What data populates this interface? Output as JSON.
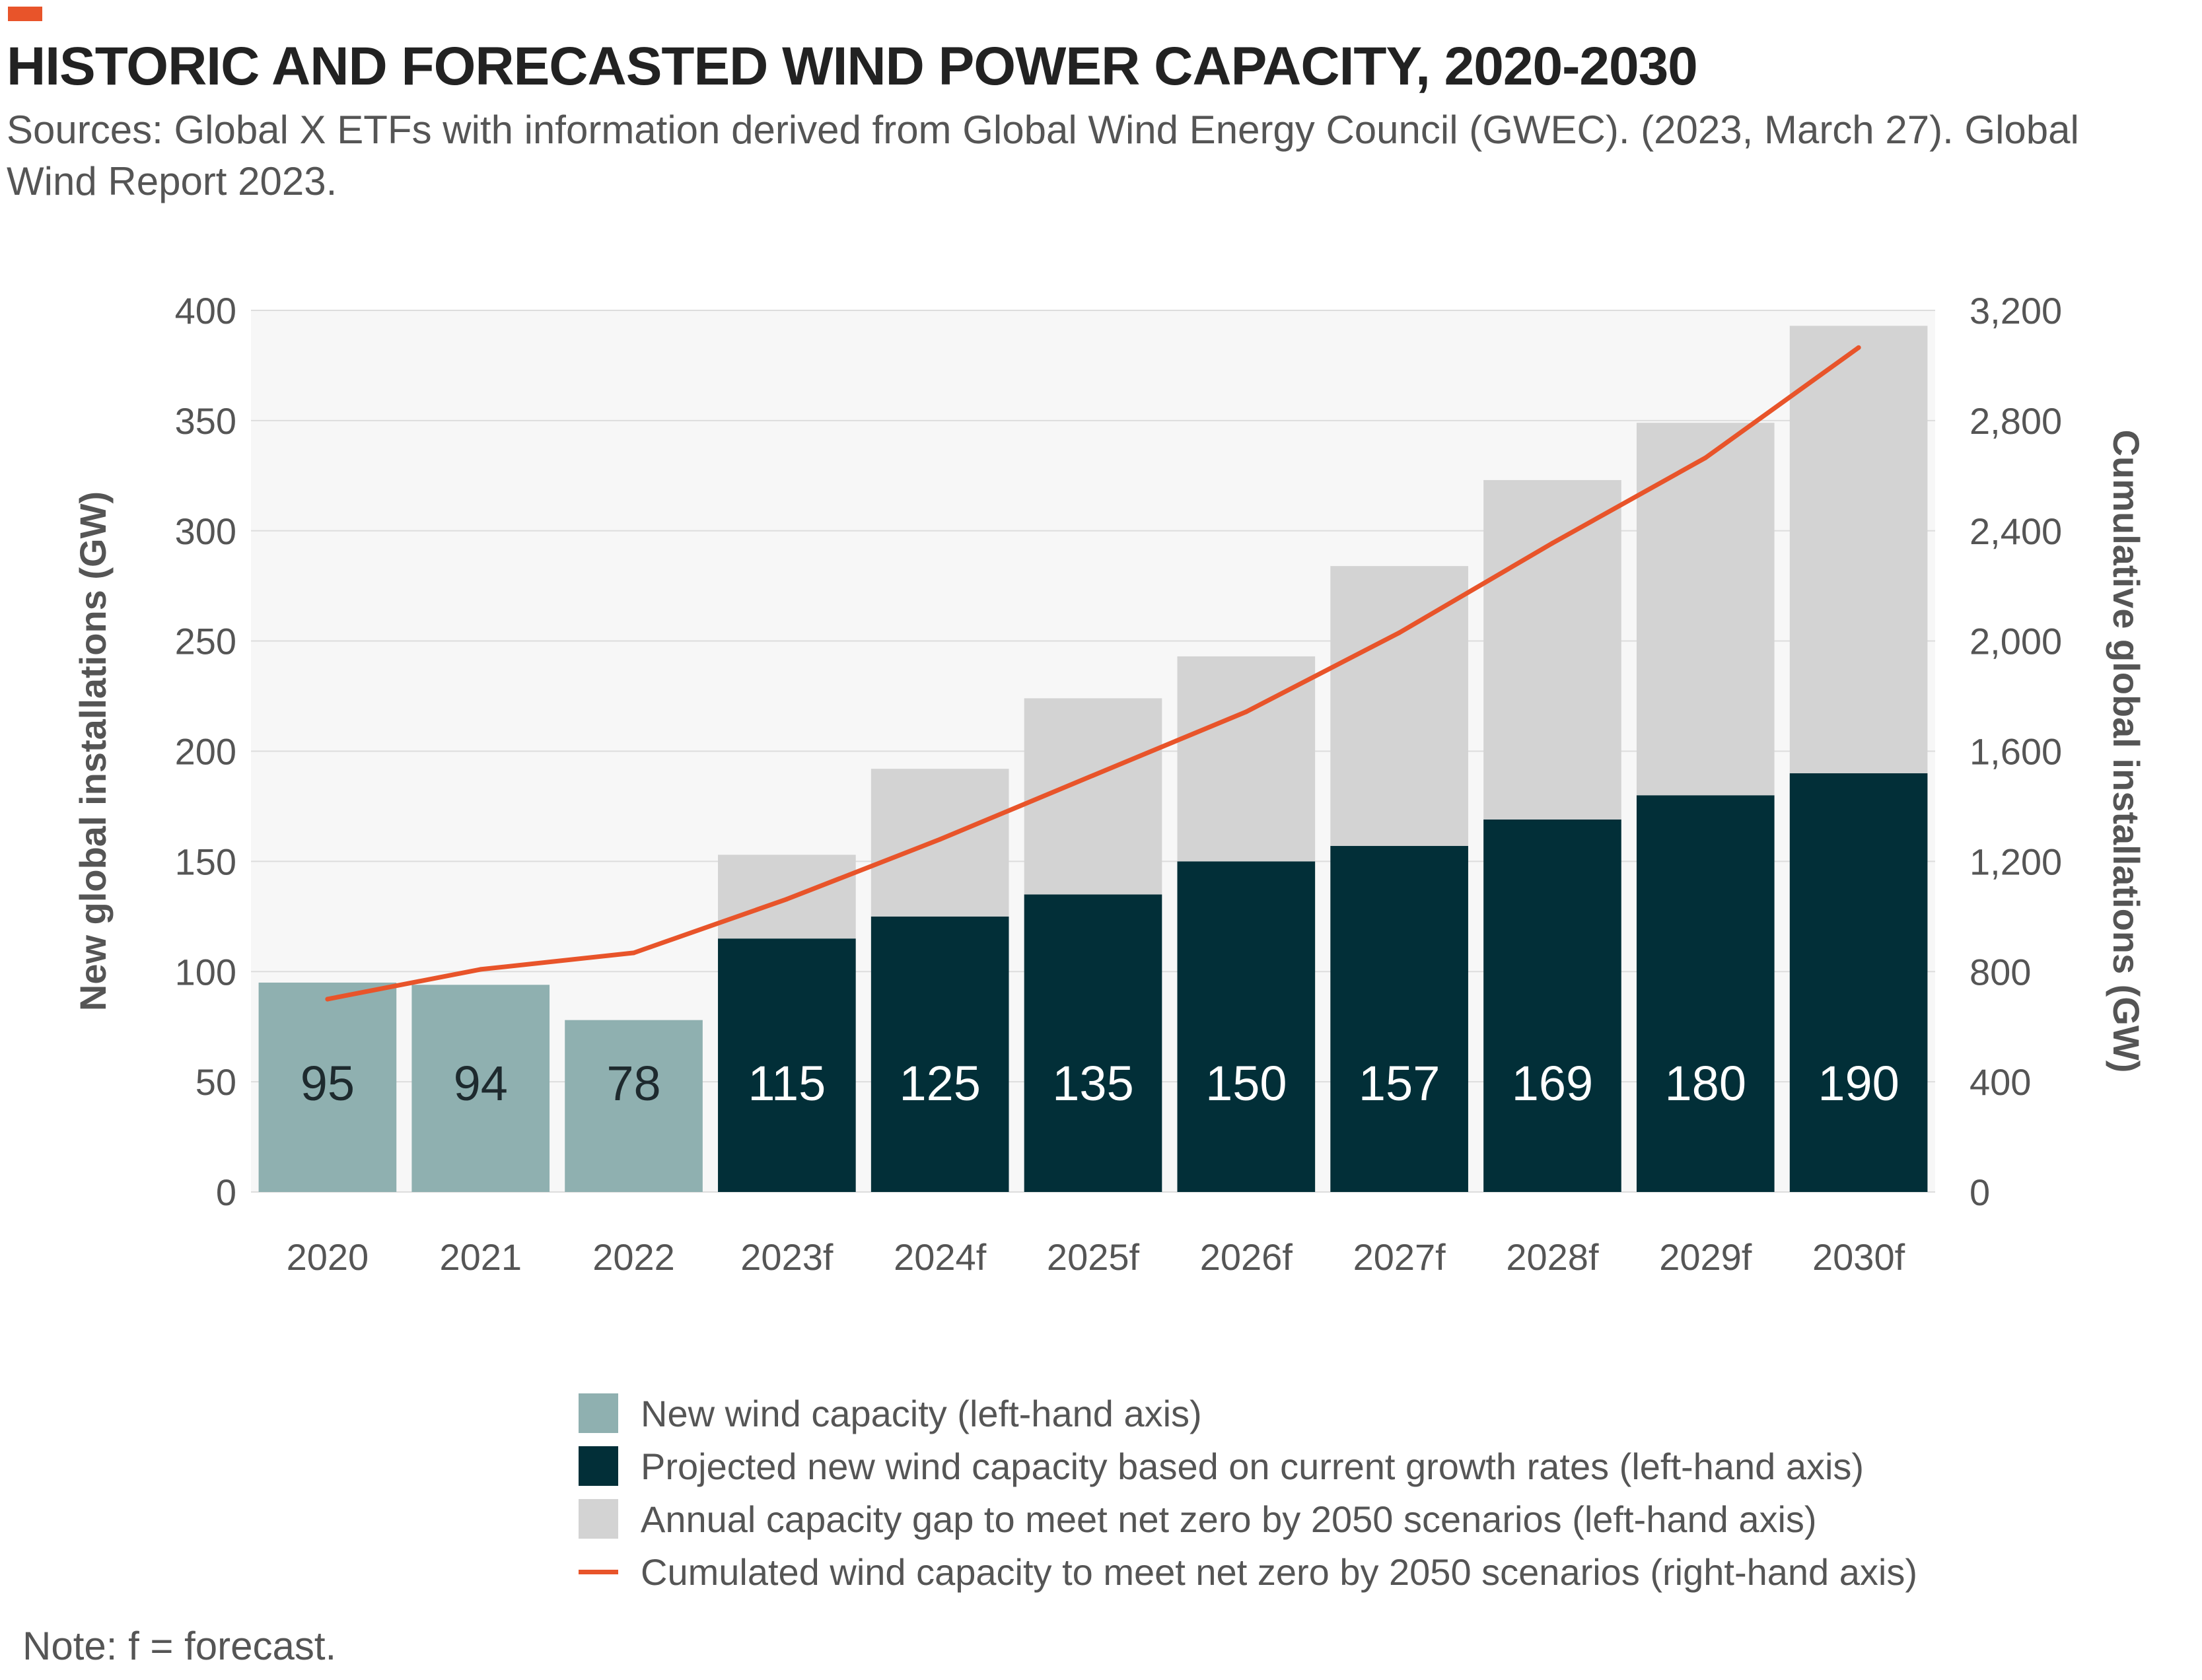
{
  "header": {
    "title": "HISTORIC AND FORECASTED WIND POWER CAPACITY, 2020-2030",
    "subtitle": "Sources: Global X ETFs with information derived from Global Wind Energy Council (GWEC). (2023, March 27). Global Wind Report 2023."
  },
  "note": "Note: f = forecast.",
  "colors": {
    "accent": "#e8542a",
    "historic": "#8fb0b0",
    "projected": "#022f38",
    "gap": "#d3d3d3",
    "line": "#e8542a",
    "plot_bg": "#f7f7f7",
    "grid": "#dddddd"
  },
  "chart_data": {
    "type": "bar",
    "stacked": true,
    "categories": [
      "2020",
      "2021",
      "2022",
      "2023f",
      "2024f",
      "2025f",
      "2026f",
      "2027f",
      "2028f",
      "2029f",
      "2030f"
    ],
    "series": [
      {
        "name": "New wind capacity (left-hand axis)",
        "axis": "left",
        "color": "#8fb0b0",
        "values": [
          95,
          94,
          78,
          null,
          null,
          null,
          null,
          null,
          null,
          null,
          null
        ]
      },
      {
        "name": "Projected new wind capacity based on current growth rates (left-hand axis)",
        "axis": "left",
        "color": "#022f38",
        "values": [
          null,
          null,
          null,
          115,
          125,
          135,
          150,
          157,
          169,
          180,
          190
        ]
      },
      {
        "name": "Annual capacity gap to meet net zero by 2050 scenarios (left-hand axis)",
        "axis": "left",
        "color": "#d3d3d3",
        "values": [
          null,
          null,
          null,
          38,
          67,
          89,
          93,
          127,
          154,
          169,
          203
        ]
      },
      {
        "name": "Cumulated wind capacity to meet net zero by 2050 scenarios (right-hand axis)",
        "axis": "right",
        "type": "line",
        "color": "#e8542a",
        "values": [
          700,
          808,
          868,
          1063,
          1280,
          1512,
          1743,
          2030,
          2355,
          2665,
          3065
        ]
      }
    ],
    "data_labels": [
      "95",
      "94",
      "78",
      "115",
      "125",
      "135",
      "150",
      "157",
      "169",
      "180",
      "190"
    ],
    "ylabel": "New global installations (GW)",
    "y2label": "Cumulative global installations (GW)",
    "ylim": [
      0,
      400
    ],
    "y2lim": [
      0,
      3200
    ],
    "yticks": [
      "0",
      "50",
      "100",
      "150",
      "200",
      "250",
      "300",
      "350",
      "400"
    ],
    "y2ticks": [
      "0",
      "400",
      "800",
      "1,200",
      "1,600",
      "2,000",
      "2,400",
      "2,800",
      "3,200"
    ],
    "grid": true,
    "legend_position": "bottom"
  }
}
